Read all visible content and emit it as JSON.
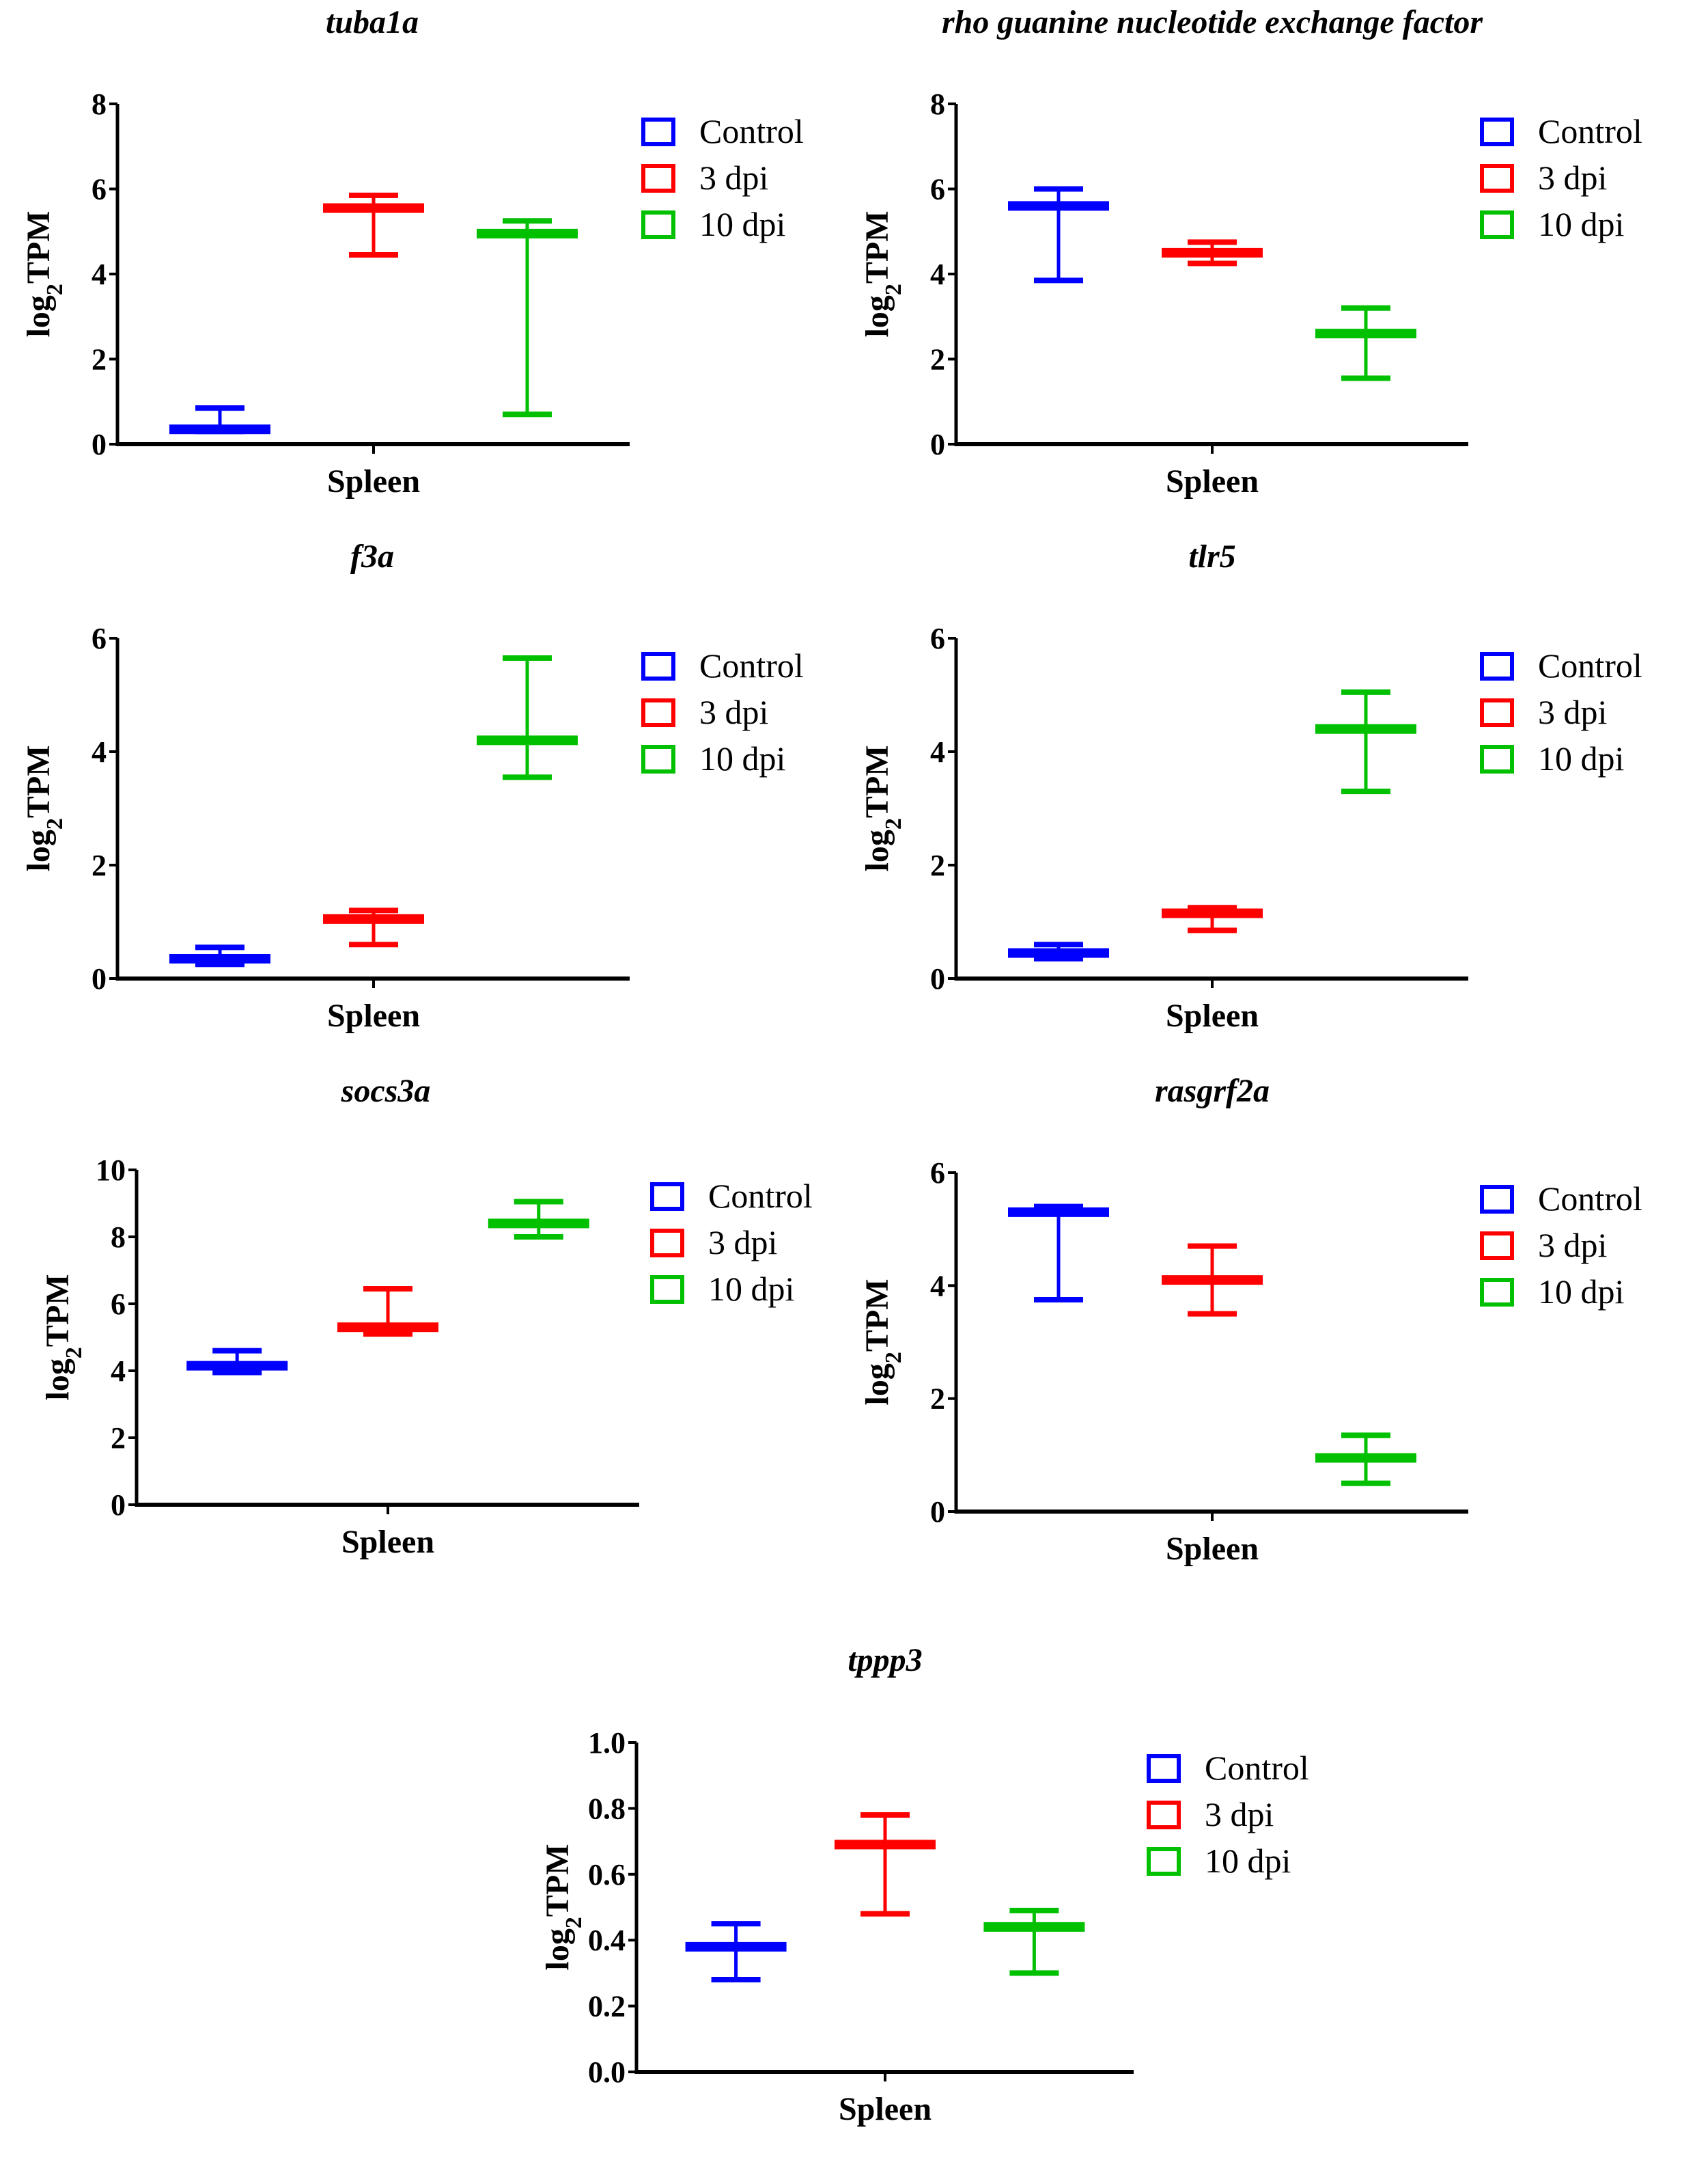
{
  "legend": [
    {
      "label": "Control",
      "color": "#0000ff"
    },
    {
      "label": "3 dpi",
      "color": "#ff0000"
    },
    {
      "label": "10 dpi",
      "color": "#00c000"
    }
  ],
  "chart_data": [
    {
      "type": "box",
      "title": "tuba1a",
      "xlabel": "Spleen",
      "ylabel": "log2TPM",
      "ylim": [
        0,
        8
      ],
      "yticks": [
        "0",
        "2",
        "4",
        "6",
        "8"
      ],
      "series": [
        {
          "name": "Control",
          "mean": 0.35,
          "min": 0.3,
          "max": 0.85
        },
        {
          "name": "3 dpi",
          "mean": 5.55,
          "min": 4.45,
          "max": 5.85
        },
        {
          "name": "10 dpi",
          "mean": 4.95,
          "min": 0.7,
          "max": 5.25
        }
      ]
    },
    {
      "type": "box",
      "title": "rho guanine nucleotide exchange factor",
      "xlabel": "Spleen",
      "ylabel": "log2TPM",
      "ylim": [
        0,
        8
      ],
      "yticks": [
        "0",
        "2",
        "4",
        "6",
        "8"
      ],
      "series": [
        {
          "name": "Control",
          "mean": 5.6,
          "min": 3.85,
          "max": 6.0
        },
        {
          "name": "3 dpi",
          "mean": 4.5,
          "min": 4.25,
          "max": 4.75
        },
        {
          "name": "10 dpi",
          "mean": 2.6,
          "min": 1.55,
          "max": 3.2
        }
      ]
    },
    {
      "type": "box",
      "title": "f3a",
      "xlabel": "Spleen",
      "ylabel": "log2TPM",
      "ylim": [
        0,
        6
      ],
      "yticks": [
        "0",
        "2",
        "4",
        "6"
      ],
      "series": [
        {
          "name": "Control",
          "mean": 0.35,
          "min": 0.25,
          "max": 0.55
        },
        {
          "name": "3 dpi",
          "mean": 1.05,
          "min": 0.6,
          "max": 1.2
        },
        {
          "name": "10 dpi",
          "mean": 4.2,
          "min": 3.55,
          "max": 5.65
        }
      ]
    },
    {
      "type": "box",
      "title": "tlr5",
      "xlabel": "Spleen",
      "ylabel": "log2TPM",
      "ylim": [
        0,
        6
      ],
      "yticks": [
        "0",
        "2",
        "4",
        "6"
      ],
      "series": [
        {
          "name": "Control",
          "mean": 0.45,
          "min": 0.35,
          "max": 0.6
        },
        {
          "name": "3 dpi",
          "mean": 1.15,
          "min": 0.85,
          "max": 1.25
        },
        {
          "name": "10 dpi",
          "mean": 4.4,
          "min": 3.3,
          "max": 5.05
        }
      ]
    },
    {
      "type": "box",
      "title": "socs3a",
      "xlabel": "Spleen",
      "ylabel": "log2TPM",
      "ylim": [
        0,
        10
      ],
      "yticks": [
        "0",
        "2",
        "4",
        "6",
        "8",
        "10"
      ],
      "series": [
        {
          "name": "Control",
          "mean": 4.15,
          "min": 3.95,
          "max": 4.6
        },
        {
          "name": "3 dpi",
          "mean": 5.3,
          "min": 5.1,
          "max": 6.45
        },
        {
          "name": "10 dpi",
          "mean": 8.4,
          "min": 8.0,
          "max": 9.05
        }
      ]
    },
    {
      "type": "box",
      "title": "rasgrf2a",
      "xlabel": "Spleen",
      "ylabel": "log2TPM",
      "ylim": [
        0,
        6
      ],
      "yticks": [
        "0",
        "2",
        "4",
        "6"
      ],
      "series": [
        {
          "name": "Control",
          "mean": 5.3,
          "min": 3.75,
          "max": 5.4
        },
        {
          "name": "3 dpi",
          "mean": 4.1,
          "min": 3.5,
          "max": 4.7
        },
        {
          "name": "10 dpi",
          "mean": 0.95,
          "min": 0.5,
          "max": 1.35
        }
      ]
    },
    {
      "type": "box",
      "title": "tppp3",
      "xlabel": "Spleen",
      "ylabel": "log2TPM",
      "ylim": [
        0,
        1
      ],
      "yticks": [
        "0.0",
        "0.2",
        "0.4",
        "0.6",
        "0.8",
        "1.0"
      ],
      "series": [
        {
          "name": "Control",
          "mean": 0.38,
          "min": 0.28,
          "max": 0.45
        },
        {
          "name": "3 dpi",
          "mean": 0.69,
          "min": 0.48,
          "max": 0.78
        },
        {
          "name": "10 dpi",
          "mean": 0.44,
          "min": 0.3,
          "max": 0.49
        }
      ]
    }
  ]
}
